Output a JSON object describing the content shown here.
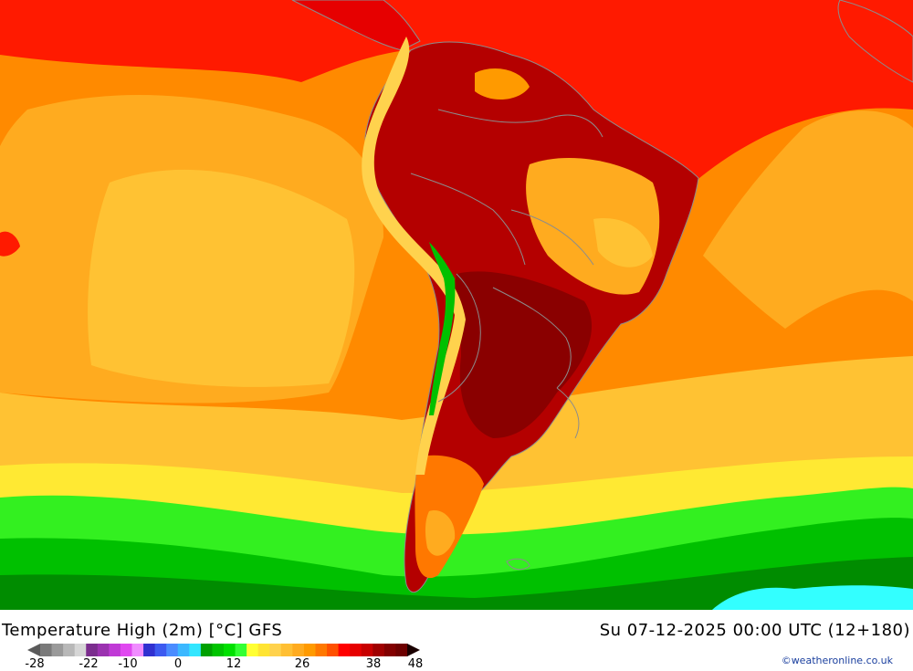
{
  "title_left": "Temperature High (2m) [°C] GFS",
  "title_right": "Su 07-12-2025 00:00 UTC (12+180)",
  "credit": "©weatheronline.co.uk",
  "colorbar": {
    "ticks": [
      "-28",
      "-22",
      "-10",
      "0",
      "12",
      "26",
      "38",
      "48"
    ],
    "colors": [
      "#7a7a7a",
      "#9a9a9a",
      "#b8b8b8",
      "#d6d6d6",
      "#7b2d8e",
      "#9b32b0",
      "#c03ad6",
      "#e048f0",
      "#f08cff",
      "#3030d0",
      "#3c5af0",
      "#4a8cff",
      "#3cb8ff",
      "#33e6ff",
      "#00a000",
      "#00c400",
      "#00e000",
      "#33ff33",
      "#ffff33",
      "#ffe433",
      "#ffd24d",
      "#ffbf33",
      "#ffab1f",
      "#ff9a00",
      "#ff7800",
      "#ff5000",
      "#ff0000",
      "#e60000",
      "#c80000",
      "#a00000",
      "#820000",
      "#6e0000"
    ]
  },
  "map_colors": {
    "ocean_hot": "#ff1a00",
    "ocean_warm": "#ff8a00",
    "ocean_mild": "#ffab1f",
    "ocean_cool": "#ffc233",
    "yellow": "#ffe933",
    "green_light": "#33f020",
    "green": "#00c000",
    "green_dark": "#008c00",
    "cyan": "#33ffff",
    "land_hot": "#b40000",
    "land_very_hot": "#8a0000",
    "andes": "#ffd24d",
    "border": "#8c8c8c"
  }
}
